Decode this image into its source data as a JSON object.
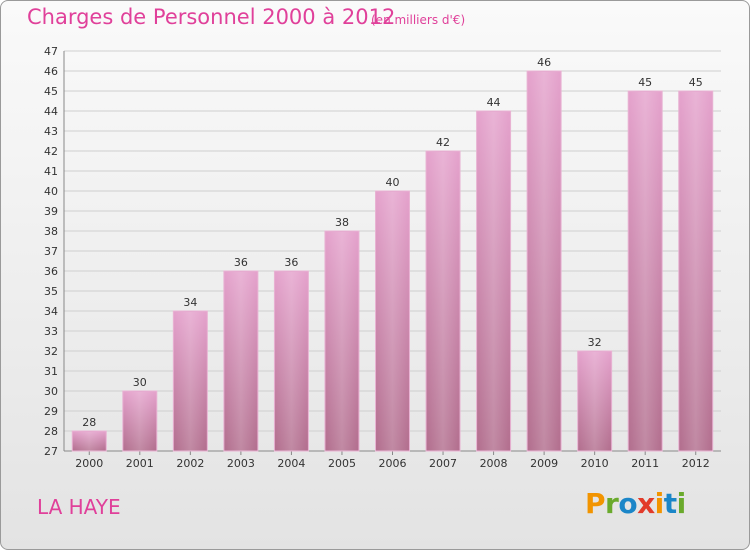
{
  "title": "Charges de Personnel 2000 à 2012",
  "subtitle": "(en milliers d'€)",
  "commune": "LA HAYE",
  "logo": {
    "letters": [
      "P",
      "r",
      "o",
      "x",
      "i",
      "t",
      "i"
    ],
    "colors": [
      "#f29400",
      "#6aaa2c",
      "#1b86c8",
      "#e23b2a",
      "#f29400",
      "#1b86c8",
      "#6aaa2c"
    ]
  },
  "colors": {
    "accent": "#e0409a",
    "bar_top": "#e5a3cd",
    "bar_bottom": "#b3708f"
  },
  "chart_data": {
    "type": "bar",
    "title": "Charges de Personnel 2000 à 2012",
    "subtitle": "(en milliers d'€)",
    "categories": [
      "2000",
      "2001",
      "2002",
      "2003",
      "2004",
      "2005",
      "2006",
      "2007",
      "2008",
      "2009",
      "2010",
      "2011",
      "2012"
    ],
    "values": [
      28,
      30,
      34,
      36,
      36,
      38,
      40,
      42,
      44,
      46,
      32,
      45,
      45
    ],
    "ylim": [
      27,
      47
    ],
    "yticks": [
      27,
      28,
      29,
      30,
      31,
      32,
      33,
      34,
      35,
      36,
      37,
      38,
      39,
      40,
      41,
      42,
      43,
      44,
      45,
      46,
      47
    ],
    "grid": true
  }
}
